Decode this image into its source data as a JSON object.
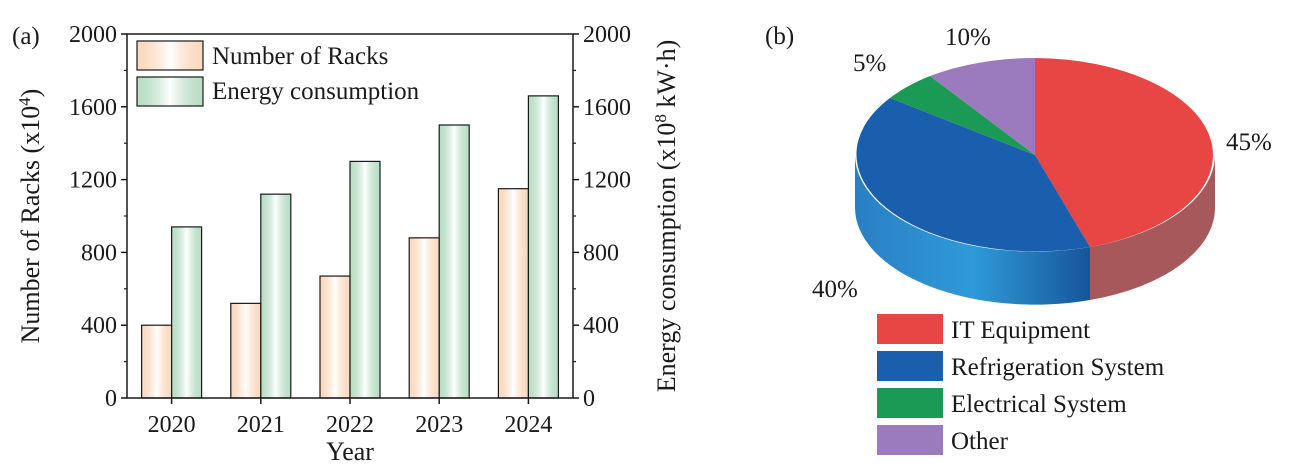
{
  "chart_data": [
    {
      "type": "bar",
      "panel_label": "(a)",
      "categories": [
        "2020",
        "2021",
        "2022",
        "2023",
        "2024"
      ],
      "series": [
        {
          "name": "Number of Racks",
          "axis": "left",
          "values": [
            400,
            520,
            670,
            880,
            1150
          ],
          "color": "#f6b98c"
        },
        {
          "name": "Energy consumption",
          "axis": "right",
          "values": [
            940,
            1120,
            1300,
            1500,
            1660
          ],
          "color": "#7fc294"
        }
      ],
      "xlabel": "Year",
      "ylabel_left": "Number of Racks (x10",
      "ylabel_left_exp": "4",
      "ylabel_left_end": ")",
      "ylabel_right": "Energy consumption (x10",
      "ylabel_right_exp": "8",
      "ylabel_right_end": " kW·h)",
      "ylim_left": [
        0,
        2000
      ],
      "ylim_right": [
        0,
        2000
      ],
      "yticks": [
        0,
        400,
        800,
        1200,
        1600,
        2000
      ],
      "legend_position": "top-left"
    },
    {
      "type": "pie",
      "panel_label": "(b)",
      "labels": [
        "IT Equipment",
        "Refrigeration System",
        "Electrical System",
        "Other"
      ],
      "values": [
        45,
        40,
        5,
        10
      ],
      "value_labels": [
        "45%",
        "40%",
        "5%",
        "10%"
      ],
      "colors": [
        "#e84545",
        "#1a5fad",
        "#1a9a55",
        "#9b7bbd"
      ],
      "style": "3d",
      "legend_position": "bottom"
    }
  ]
}
